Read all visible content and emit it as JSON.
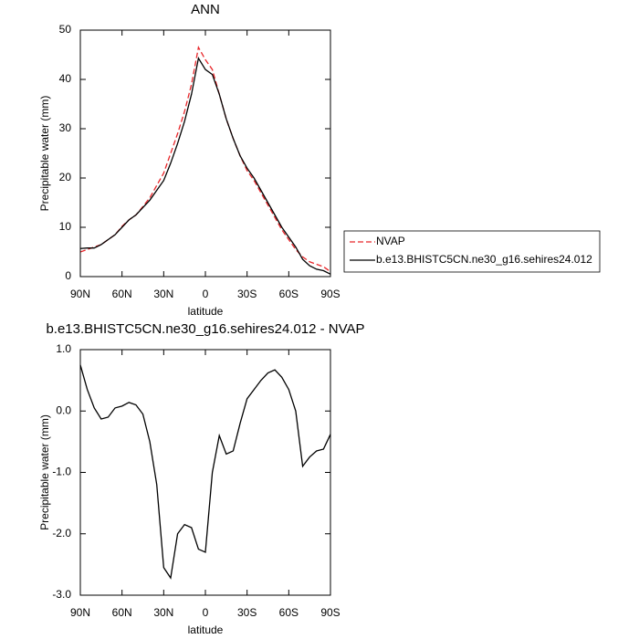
{
  "chart_data": [
    {
      "type": "line",
      "title": "ANN",
      "x_label": "latitude",
      "y_label": "Precipitable water (mm)",
      "x": [
        90,
        85,
        80,
        75,
        70,
        65,
        60,
        55,
        50,
        45,
        40,
        35,
        30,
        25,
        20,
        15,
        10,
        5,
        0,
        -5,
        -10,
        -15,
        -20,
        -25,
        -30,
        -35,
        -40,
        -45,
        -50,
        -55,
        -60,
        -65,
        -70,
        -75,
        -80,
        -85,
        -90
      ],
      "xlim": [
        90,
        -90
      ],
      "xticks": [
        {
          "value": 90,
          "label": "90N"
        },
        {
          "value": 60,
          "label": "60N"
        },
        {
          "value": 30,
          "label": "30N"
        },
        0,
        {
          "value": -30,
          "label": "30S"
        },
        {
          "value": -60,
          "label": "60S"
        },
        {
          "value": -90,
          "label": "90S"
        }
      ],
      "ylim": [
        0,
        50
      ],
      "yticks": [
        0,
        10,
        20,
        30,
        40,
        50
      ],
      "legend": "right",
      "series": [
        {
          "name": "NVAP",
          "color": "#e8262a",
          "dashed": true,
          "values": [
            5,
            5.5,
            6,
            6.5,
            7.5,
            8.5,
            10.2,
            11.5,
            12.5,
            14.2,
            16,
            18.5,
            21,
            25,
            29,
            33.5,
            39,
            46.5,
            44,
            42,
            37,
            32,
            28,
            24.5,
            21.5,
            19.5,
            17,
            14.5,
            12,
            9.5,
            7.5,
            5.5,
            4,
            3,
            2.5,
            2,
            1
          ]
        },
        {
          "name": "b.e13.BHISTC5CN.ne30_g16.sehires24.012",
          "color": "#000000",
          "dashed": false,
          "values": [
            5.7,
            5.8,
            5.8,
            6.5,
            7.5,
            8.5,
            10,
            11.5,
            12.5,
            14,
            15.5,
            17.5,
            19.5,
            23,
            27,
            31.5,
            37,
            44.3,
            42,
            41,
            37,
            32,
            28,
            24.5,
            22,
            20,
            17.5,
            15,
            12.5,
            10,
            8,
            6,
            3.5,
            2.2,
            1.5,
            1.2,
            0.5
          ]
        }
      ]
    },
    {
      "type": "line",
      "title": "b.e13.BHISTC5CN.ne30_g16.sehires24.012 - NVAP",
      "x_label": "latitude",
      "y_label": "Precipitable water (mm)",
      "x": [
        90,
        85,
        80,
        75,
        70,
        65,
        60,
        55,
        50,
        45,
        40,
        35,
        30,
        25,
        20,
        15,
        10,
        5,
        0,
        -5,
        -10,
        -15,
        -20,
        -25,
        -30,
        -35,
        -40,
        -45,
        -50,
        -55,
        -60,
        -65,
        -70,
        -75,
        -80,
        -85,
        -90
      ],
      "xlim": [
        90,
        -90
      ],
      "xticks": [
        {
          "value": 90,
          "label": "90N"
        },
        {
          "value": 60,
          "label": "60N"
        },
        {
          "value": 30,
          "label": "30N"
        },
        0,
        {
          "value": -30,
          "label": "30S"
        },
        {
          "value": -60,
          "label": "60S"
        },
        {
          "value": -90,
          "label": "90S"
        }
      ],
      "ylim": [
        -3,
        1
      ],
      "yticks": [
        {
          "value": -3,
          "label": "-3.0"
        },
        {
          "value": -2,
          "label": "-2.0"
        },
        {
          "value": -1,
          "label": "-1.0"
        },
        {
          "value": 0,
          "label": "0.0"
        },
        {
          "value": 1,
          "label": "1.0"
        }
      ],
      "series": [
        {
          "color": "#000000",
          "dashed": false,
          "values": [
            0.75,
            0.35,
            0.05,
            -0.13,
            -0.1,
            0.05,
            0.08,
            0.14,
            0.1,
            -0.05,
            -0.5,
            -1.2,
            -2.55,
            -2.72,
            -2,
            -1.85,
            -1.9,
            -2.25,
            -2.3,
            -1,
            -0.4,
            -0.7,
            -0.65,
            -0.2,
            0.2,
            0.35,
            0.5,
            0.62,
            0.67,
            0.55,
            0.35,
            0,
            -0.9,
            -0.75,
            -0.65,
            -0.62,
            -0.38
          ]
        }
      ]
    }
  ]
}
